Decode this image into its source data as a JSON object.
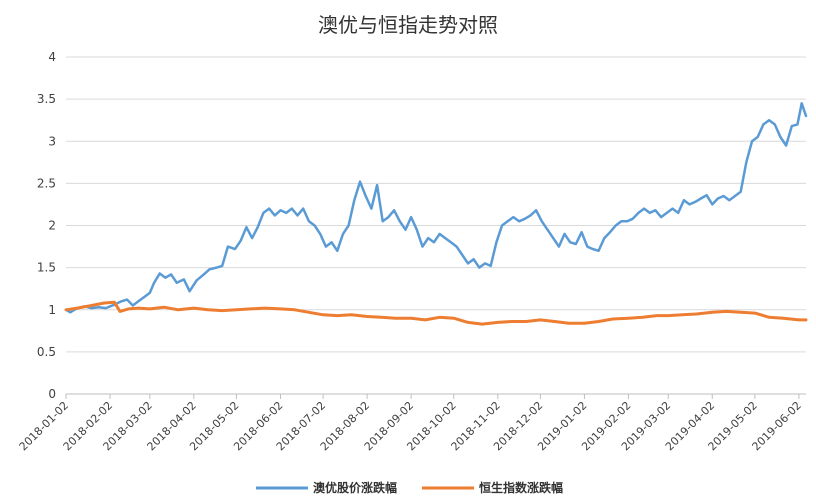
{
  "chart_data": {
    "type": "line",
    "title": "澳优与恒指走势对照",
    "xlabel": "",
    "ylabel": "",
    "ylim": [
      0,
      4
    ],
    "yticks": [
      "0",
      "0.5",
      "1",
      "1.5",
      "2",
      "2.5",
      "3",
      "3.5",
      "4"
    ],
    "xlim": [
      "2018-01-02",
      "2019-06-07"
    ],
    "x_ticks": [
      "2018-01-02",
      "2018-02-02",
      "2018-03-02",
      "2018-04-02",
      "2018-05-02",
      "2018-06-02",
      "2018-07-02",
      "2018-08-02",
      "2018-09-02",
      "2018-10-02",
      "2018-11-02",
      "2018-12-02",
      "2019-01-02",
      "2019-02-02",
      "2019-03-02",
      "2019-04-02",
      "2019-05-02",
      "2019-06-02"
    ],
    "grid": true,
    "legend_position": "bottom",
    "series": [
      {
        "name": "澳优股价涨跌幅",
        "color": "#5B9BD5",
        "points": [
          [
            "2018-01-02",
            1.0
          ],
          [
            "2018-01-05",
            0.97
          ],
          [
            "2018-01-10",
            1.02
          ],
          [
            "2018-01-15",
            1.04
          ],
          [
            "2018-01-20",
            1.02
          ],
          [
            "2018-01-25",
            1.03
          ],
          [
            "2018-01-30",
            1.02
          ],
          [
            "2018-02-05",
            1.06
          ],
          [
            "2018-02-10",
            1.1
          ],
          [
            "2018-02-14",
            1.12
          ],
          [
            "2018-02-18",
            1.05
          ],
          [
            "2018-02-22",
            1.1
          ],
          [
            "2018-02-26",
            1.15
          ],
          [
            "2018-03-02",
            1.2
          ],
          [
            "2018-03-05",
            1.32
          ],
          [
            "2018-03-09",
            1.43
          ],
          [
            "2018-03-13",
            1.38
          ],
          [
            "2018-03-17",
            1.42
          ],
          [
            "2018-03-21",
            1.32
          ],
          [
            "2018-03-26",
            1.36
          ],
          [
            "2018-03-30",
            1.22
          ],
          [
            "2018-04-04",
            1.35
          ],
          [
            "2018-04-09",
            1.42
          ],
          [
            "2018-04-13",
            1.48
          ],
          [
            "2018-04-18",
            1.5
          ],
          [
            "2018-04-22",
            1.52
          ],
          [
            "2018-04-26",
            1.75
          ],
          [
            "2018-05-01",
            1.72
          ],
          [
            "2018-05-05",
            1.82
          ],
          [
            "2018-05-09",
            1.98
          ],
          [
            "2018-05-13",
            1.85
          ],
          [
            "2018-05-17",
            1.98
          ],
          [
            "2018-05-21",
            2.15
          ],
          [
            "2018-05-25",
            2.2
          ],
          [
            "2018-05-29",
            2.12
          ],
          [
            "2018-06-02",
            2.18
          ],
          [
            "2018-06-06",
            2.15
          ],
          [
            "2018-06-10",
            2.2
          ],
          [
            "2018-06-14",
            2.12
          ],
          [
            "2018-06-18",
            2.2
          ],
          [
            "2018-06-22",
            2.05
          ],
          [
            "2018-06-26",
            2.0
          ],
          [
            "2018-06-30",
            1.9
          ],
          [
            "2018-07-04",
            1.75
          ],
          [
            "2018-07-08",
            1.8
          ],
          [
            "2018-07-12",
            1.7
          ],
          [
            "2018-07-16",
            1.9
          ],
          [
            "2018-07-20",
            2.0
          ],
          [
            "2018-07-24",
            2.3
          ],
          [
            "2018-07-28",
            2.52
          ],
          [
            "2018-08-01",
            2.35
          ],
          [
            "2018-08-05",
            2.2
          ],
          [
            "2018-08-09",
            2.48
          ],
          [
            "2018-08-13",
            2.05
          ],
          [
            "2018-08-17",
            2.1
          ],
          [
            "2018-08-21",
            2.18
          ],
          [
            "2018-08-25",
            2.05
          ],
          [
            "2018-08-29",
            1.95
          ],
          [
            "2018-09-02",
            2.1
          ],
          [
            "2018-09-06",
            1.95
          ],
          [
            "2018-09-10",
            1.75
          ],
          [
            "2018-09-14",
            1.85
          ],
          [
            "2018-09-18",
            1.8
          ],
          [
            "2018-09-22",
            1.9
          ],
          [
            "2018-09-26",
            1.85
          ],
          [
            "2018-09-30",
            1.8
          ],
          [
            "2018-10-04",
            1.75
          ],
          [
            "2018-10-08",
            1.65
          ],
          [
            "2018-10-12",
            1.55
          ],
          [
            "2018-10-16",
            1.6
          ],
          [
            "2018-10-20",
            1.5
          ],
          [
            "2018-10-24",
            1.55
          ],
          [
            "2018-10-28",
            1.52
          ],
          [
            "2018-11-01",
            1.8
          ],
          [
            "2018-11-05",
            2.0
          ],
          [
            "2018-11-09",
            2.05
          ],
          [
            "2018-11-13",
            2.1
          ],
          [
            "2018-11-17",
            2.05
          ],
          [
            "2018-11-21",
            2.08
          ],
          [
            "2018-11-25",
            2.12
          ],
          [
            "2018-11-29",
            2.18
          ],
          [
            "2018-12-03",
            2.05
          ],
          [
            "2018-12-07",
            1.95
          ],
          [
            "2018-12-11",
            1.85
          ],
          [
            "2018-12-15",
            1.75
          ],
          [
            "2018-12-19",
            1.9
          ],
          [
            "2018-12-23",
            1.8
          ],
          [
            "2018-12-27",
            1.78
          ],
          [
            "2018-12-31",
            1.92
          ],
          [
            "2019-01-04",
            1.75
          ],
          [
            "2019-01-08",
            1.72
          ],
          [
            "2019-01-12",
            1.7
          ],
          [
            "2019-01-16",
            1.85
          ],
          [
            "2019-01-20",
            1.92
          ],
          [
            "2019-01-24",
            2.0
          ],
          [
            "2019-01-28",
            2.05
          ],
          [
            "2019-02-01",
            2.05
          ],
          [
            "2019-02-05",
            2.08
          ],
          [
            "2019-02-09",
            2.15
          ],
          [
            "2019-02-13",
            2.2
          ],
          [
            "2019-02-17",
            2.15
          ],
          [
            "2019-02-21",
            2.18
          ],
          [
            "2019-02-25",
            2.1
          ],
          [
            "2019-03-01",
            2.15
          ],
          [
            "2019-03-05",
            2.2
          ],
          [
            "2019-03-09",
            2.15
          ],
          [
            "2019-03-13",
            2.3
          ],
          [
            "2019-03-17",
            2.25
          ],
          [
            "2019-03-21",
            2.28
          ],
          [
            "2019-03-25",
            2.32
          ],
          [
            "2019-03-29",
            2.36
          ],
          [
            "2019-04-02",
            2.25
          ],
          [
            "2019-04-06",
            2.32
          ],
          [
            "2019-04-10",
            2.35
          ],
          [
            "2019-04-14",
            2.3
          ],
          [
            "2019-04-18",
            2.35
          ],
          [
            "2019-04-22",
            2.4
          ],
          [
            "2019-04-26",
            2.75
          ],
          [
            "2019-04-30",
            3.0
          ],
          [
            "2019-05-04",
            3.05
          ],
          [
            "2019-05-08",
            3.2
          ],
          [
            "2019-05-12",
            3.25
          ],
          [
            "2019-05-16",
            3.2
          ],
          [
            "2019-05-20",
            3.05
          ],
          [
            "2019-05-24",
            2.95
          ],
          [
            "2019-05-28",
            3.18
          ],
          [
            "2019-06-01",
            3.2
          ],
          [
            "2019-06-04",
            3.45
          ],
          [
            "2019-06-07",
            3.3
          ]
        ]
      },
      {
        "name": "恒生指数涨跌幅",
        "color": "#ED7D31",
        "points": [
          [
            "2018-01-02",
            1.0
          ],
          [
            "2018-01-10",
            1.02
          ],
          [
            "2018-01-20",
            1.05
          ],
          [
            "2018-01-29",
            1.08
          ],
          [
            "2018-02-05",
            1.09
          ],
          [
            "2018-02-09",
            0.98
          ],
          [
            "2018-02-15",
            1.01
          ],
          [
            "2018-02-22",
            1.02
          ],
          [
            "2018-03-02",
            1.01
          ],
          [
            "2018-03-12",
            1.03
          ],
          [
            "2018-03-22",
            1.0
          ],
          [
            "2018-04-02",
            1.02
          ],
          [
            "2018-04-12",
            1.0
          ],
          [
            "2018-04-22",
            0.99
          ],
          [
            "2018-05-02",
            1.0
          ],
          [
            "2018-05-12",
            1.01
          ],
          [
            "2018-05-22",
            1.02
          ],
          [
            "2018-06-02",
            1.01
          ],
          [
            "2018-06-12",
            1.0
          ],
          [
            "2018-06-22",
            0.97
          ],
          [
            "2018-07-02",
            0.94
          ],
          [
            "2018-07-12",
            0.93
          ],
          [
            "2018-07-22",
            0.94
          ],
          [
            "2018-08-02",
            0.92
          ],
          [
            "2018-08-12",
            0.91
          ],
          [
            "2018-08-22",
            0.9
          ],
          [
            "2018-09-02",
            0.9
          ],
          [
            "2018-09-12",
            0.88
          ],
          [
            "2018-09-22",
            0.91
          ],
          [
            "2018-10-02",
            0.9
          ],
          [
            "2018-10-12",
            0.85
          ],
          [
            "2018-10-22",
            0.83
          ],
          [
            "2018-11-02",
            0.85
          ],
          [
            "2018-11-12",
            0.86
          ],
          [
            "2018-11-22",
            0.86
          ],
          [
            "2018-12-02",
            0.88
          ],
          [
            "2018-12-12",
            0.86
          ],
          [
            "2018-12-22",
            0.84
          ],
          [
            "2019-01-02",
            0.84
          ],
          [
            "2019-01-12",
            0.86
          ],
          [
            "2019-01-22",
            0.89
          ],
          [
            "2019-02-02",
            0.9
          ],
          [
            "2019-02-12",
            0.91
          ],
          [
            "2019-02-22",
            0.93
          ],
          [
            "2019-03-02",
            0.93
          ],
          [
            "2019-03-12",
            0.94
          ],
          [
            "2019-03-22",
            0.95
          ],
          [
            "2019-04-02",
            0.97
          ],
          [
            "2019-04-12",
            0.98
          ],
          [
            "2019-04-22",
            0.97
          ],
          [
            "2019-05-02",
            0.96
          ],
          [
            "2019-05-12",
            0.91
          ],
          [
            "2019-05-22",
            0.9
          ],
          [
            "2019-06-02",
            0.88
          ],
          [
            "2019-06-07",
            0.88
          ]
        ]
      }
    ]
  }
}
